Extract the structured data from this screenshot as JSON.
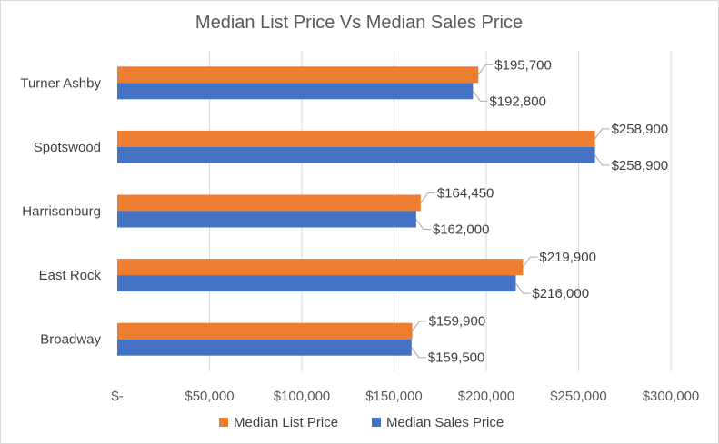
{
  "chart_data": {
    "type": "bar",
    "orientation": "horizontal",
    "title": "Median List Price Vs Median Sales Price",
    "categories": [
      "Turner Ashby",
      "Spotswood",
      "Harrisonburg",
      "East Rock",
      "Broadway"
    ],
    "series": [
      {
        "name": "Median List Price",
        "color": "#ED7D31",
        "values": [
          195700,
          258900,
          164450,
          219900,
          159900
        ],
        "labels": [
          "$195,700",
          "$258,900",
          "$164,450",
          "$219,900",
          "$159,900"
        ]
      },
      {
        "name": "Median Sales Price",
        "color": "#4472C4",
        "values": [
          192800,
          258900,
          162000,
          216000,
          159500
        ],
        "labels": [
          "$192,800",
          "$258,900",
          "$162,000",
          "$216,000",
          "$159,500"
        ]
      }
    ],
    "xlim": [
      0,
      300000
    ],
    "x_ticks": [
      0,
      50000,
      100000,
      150000,
      200000,
      250000,
      300000
    ],
    "x_tick_labels": [
      "$-",
      "$50,000",
      "$100,000",
      "$150,000",
      "$200,000",
      "$250,000",
      "$300,000"
    ],
    "grid": "vertical",
    "legend_position": "bottom"
  }
}
